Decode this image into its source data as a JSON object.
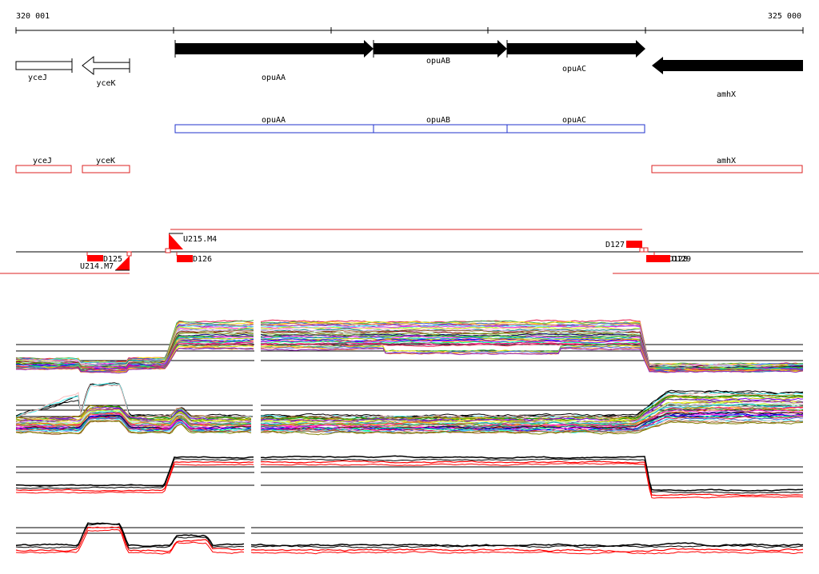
{
  "ruler": {
    "start_label": "320 001",
    "end_label": "325 000",
    "start": 320001,
    "end": 325000
  },
  "genes": [
    {
      "name": "yceJ",
      "start": 320001,
      "end": 320360,
      "strand": "+",
      "style": "hollow"
    },
    {
      "name": "yceK",
      "start": 320420,
      "end": 320730,
      "strand": "-",
      "style": "hollow"
    },
    {
      "name": "opuAA",
      "start": 321000,
      "end": 322260,
      "strand": "+",
      "style": "filled"
    },
    {
      "name": "opuAB",
      "start": 322260,
      "end": 323110,
      "strand": "+",
      "style": "filled"
    },
    {
      "name": "opuAC",
      "start": 323110,
      "end": 324000,
      "strand": "+",
      "style": "filled"
    },
    {
      "name": "amhX",
      "start": 324040,
      "end": 325000,
      "strand": "-",
      "style": "filled"
    }
  ],
  "operons": [
    {
      "name": "opuAA",
      "start": 321000,
      "end": 322260
    },
    {
      "name": "opuAB",
      "start": 322260,
      "end": 323110
    },
    {
      "name": "opuAC",
      "start": 323110,
      "end": 324000
    }
  ],
  "transcription_units": [
    {
      "name": "yceJ",
      "start": 320001,
      "end": 320360
    },
    {
      "name": "yceK",
      "start": 320420,
      "end": 320730
    },
    {
      "name": "amhX",
      "start": 324040,
      "end": 325000
    }
  ],
  "features": [
    {
      "name": "U215.M4",
      "position": 320975,
      "strand": "+"
    },
    {
      "name": "D125",
      "position": 320450,
      "strand": "-"
    },
    {
      "name": "U214.M7",
      "position": 320720,
      "strand": "-"
    },
    {
      "name": "D126",
      "position": 321010,
      "strand": "-"
    },
    {
      "name": "D127",
      "position": 323980,
      "strand": "+"
    },
    {
      "name": "D128",
      "position": 324010,
      "strand": "-"
    },
    {
      "name": "D129",
      "position": 324080,
      "strand": "-"
    }
  ],
  "colors": {
    "gene": "#000000",
    "operon": "#2233cc",
    "transcription_unit": "#dd2222",
    "feature": "#ff0000",
    "baseline": "#000000"
  },
  "tracks": [
    {
      "name": "expression-panel-1",
      "type": "multi-condition"
    },
    {
      "name": "expression-panel-2",
      "type": "multi-condition"
    },
    {
      "name": "expression-panel-3",
      "type": "strand-pair"
    },
    {
      "name": "expression-panel-4",
      "type": "strand-pair"
    }
  ]
}
